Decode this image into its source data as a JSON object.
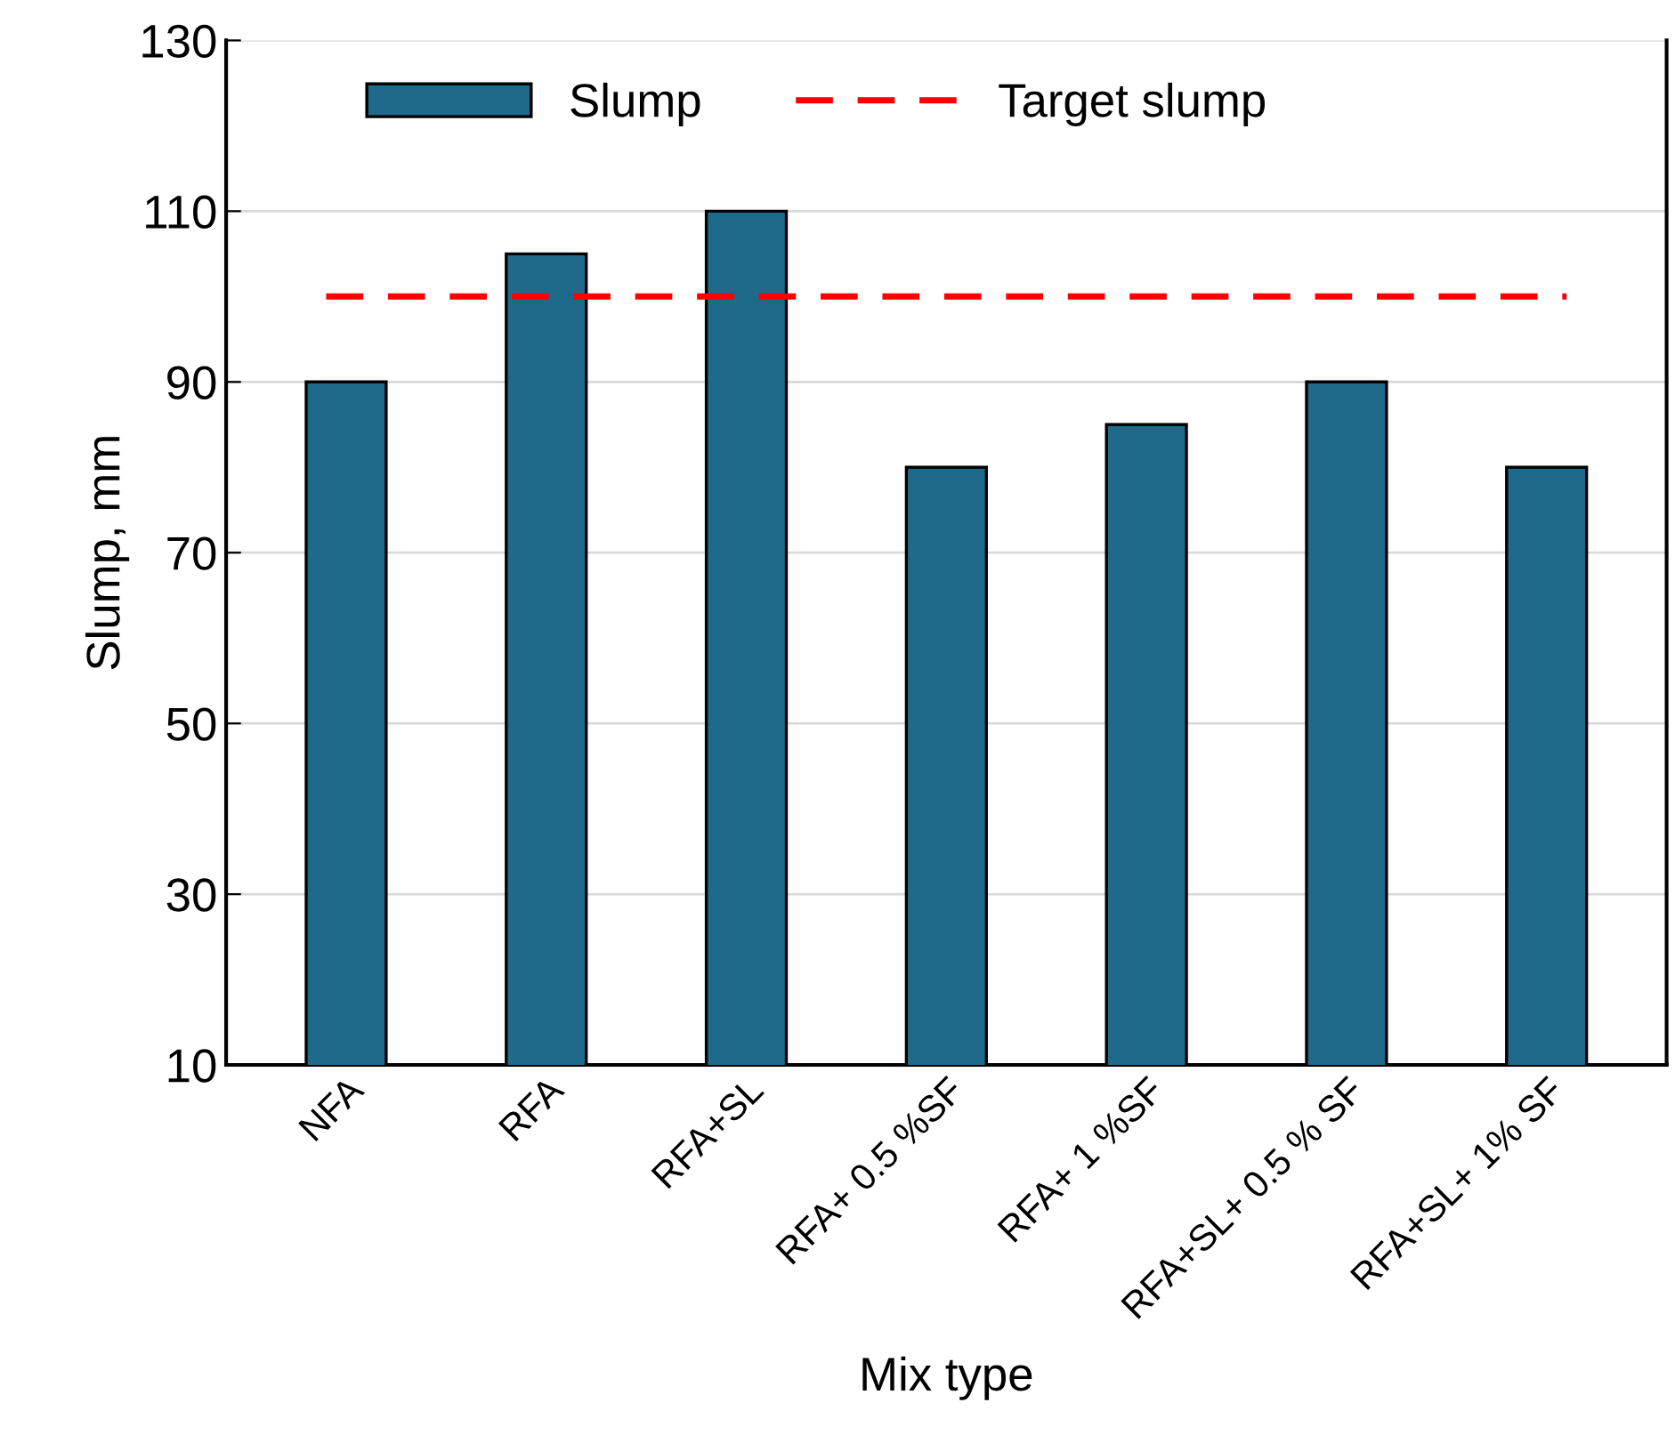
{
  "chart_data": {
    "type": "bar",
    "xlabel": "Mix type",
    "ylabel": "Slump, mm",
    "categories": [
      "NFA",
      "RFA",
      "RFA+SL",
      "RFA+ 0.5 %SF",
      "RFA+ 1 %SF",
      "RFA+SL+ 0.5 % SF",
      "RFA+SL+ 1% SF"
    ],
    "series": [
      {
        "name": "Slump",
        "color": "#1f6a8a",
        "values": [
          90,
          105,
          110,
          80,
          85,
          90,
          80
        ]
      }
    ],
    "ref_lines": [
      {
        "axis": "y",
        "value": 100,
        "label": "Target slump",
        "color": "#ff0000",
        "line_style": "dashed"
      }
    ],
    "ylim": [
      10,
      130
    ],
    "yticks": [
      10,
      30,
      50,
      70,
      90,
      110,
      130
    ],
    "grid": "y",
    "legend": "top"
  }
}
